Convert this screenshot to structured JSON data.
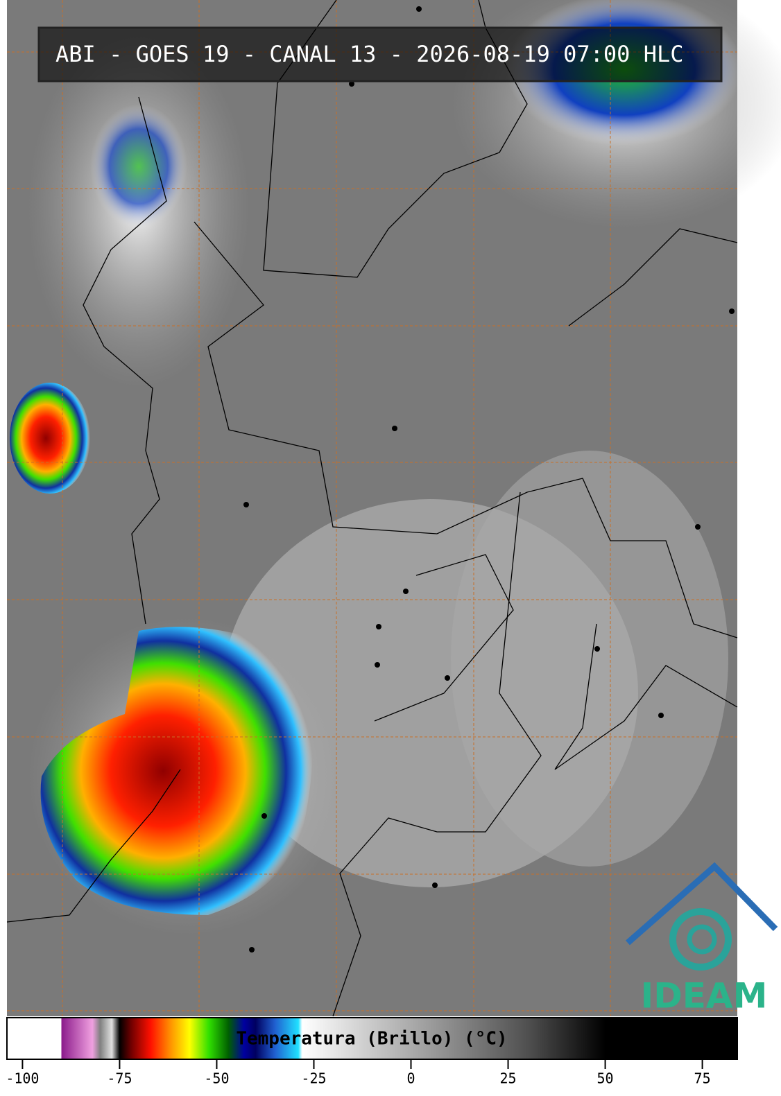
{
  "header": {
    "title": "ABI - GOES 19 - CANAL 13 - 2026-08-19 07:00 HLC"
  },
  "logo": {
    "text": "IDEAM"
  },
  "colorbar": {
    "label": "Temperatura (Brillo) (°C)",
    "lim": [
      -104,
      84
    ],
    "ticks": [
      -100,
      -75,
      -50,
      -25,
      0,
      25,
      50,
      75
    ],
    "stops": [
      {
        "value": -104,
        "color": "#ffffff"
      },
      {
        "value": -90,
        "color": "#ffffff"
      },
      {
        "value": -90,
        "color": "#8a1a8a"
      },
      {
        "value": -82,
        "color": "#f0a0e0"
      },
      {
        "value": -80,
        "color": "#808080"
      },
      {
        "value": -77,
        "color": "#e0e0e0"
      },
      {
        "value": -75,
        "color": "#000000"
      },
      {
        "value": -72,
        "color": "#700000"
      },
      {
        "value": -67,
        "color": "#ff1000"
      },
      {
        "value": -62,
        "color": "#ff9000"
      },
      {
        "value": -57,
        "color": "#ffff00"
      },
      {
        "value": -52,
        "color": "#30e000"
      },
      {
        "value": -47,
        "color": "#006000"
      },
      {
        "value": -43,
        "color": "#0000a0"
      },
      {
        "value": -40,
        "color": "#000060"
      },
      {
        "value": -35,
        "color": "#2060d0"
      },
      {
        "value": -29,
        "color": "#20e0ff"
      },
      {
        "value": -28,
        "color": "#ffffff"
      },
      {
        "value": 30,
        "color": "#505050"
      },
      {
        "value": 50,
        "color": "#000000"
      },
      {
        "value": 84,
        "color": "#000000"
      }
    ]
  }
}
